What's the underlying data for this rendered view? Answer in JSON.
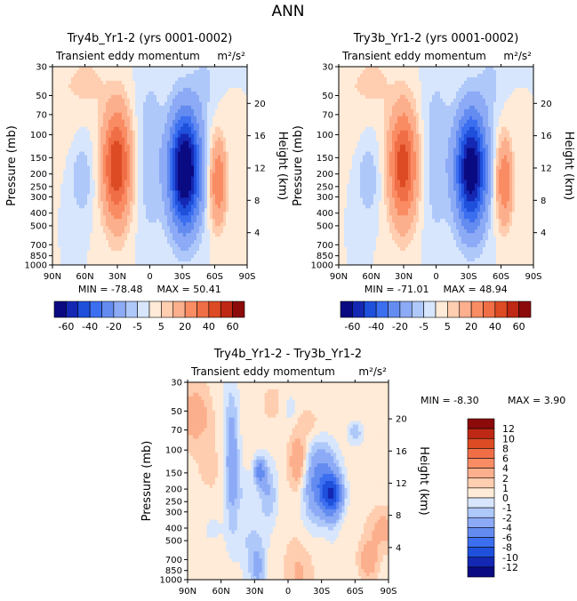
{
  "page_title": "ANN",
  "chart_data": [
    {
      "type": "contour",
      "title": "Try4b_Yr1-2 (yrs 0001-0002)",
      "subtitle": "Transient eddy momentum",
      "units": "m²/s²",
      "xlabel": "",
      "ylabel": "Pressure (mb)",
      "ylabel_right": "Height (km)",
      "x_ticks": [
        "90N",
        "60N",
        "30N",
        "0",
        "30S",
        "60S",
        "90S"
      ],
      "y_ticks": [
        "30",
        "50",
        "70",
        "100",
        "150",
        "200",
        "250",
        "300",
        "400",
        "500",
        "700",
        "850",
        "1000"
      ],
      "y_ticks_right": [
        "20",
        "16",
        "12",
        "8",
        "4"
      ],
      "min_label": "MIN = -78.48",
      "max_label": "MAX =  50.41",
      "features": [
        {
          "lat": 29,
          "p": 230,
          "value": 50
        },
        {
          "lat": -33,
          "p": 230,
          "value": -78
        },
        {
          "lat": -62,
          "p": 330,
          "value": 30
        },
        {
          "lat": 63,
          "p": 310,
          "value": -10
        }
      ]
    },
    {
      "type": "contour",
      "title": "Try3b_Yr1-2 (yrs 0001-0002)",
      "subtitle": "Transient eddy momentum",
      "units": "m²/s²",
      "xlabel": "",
      "ylabel": "Pressure (mb)",
      "ylabel_right": "Height (km)",
      "x_ticks": [
        "90N",
        "60N",
        "30N",
        "0",
        "30S",
        "60S",
        "90S"
      ],
      "y_ticks": [
        "30",
        "50",
        "70",
        "100",
        "150",
        "200",
        "250",
        "300",
        "400",
        "500",
        "700",
        "850",
        "1000"
      ],
      "y_ticks_right": [
        "20",
        "16",
        "12",
        "8",
        "4"
      ],
      "min_label": "MIN = -71.01",
      "max_label": "MAX =  48.94",
      "features": [
        {
          "lat": 29,
          "p": 230,
          "value": 49
        },
        {
          "lat": -33,
          "p": 230,
          "value": -71
        },
        {
          "lat": -62,
          "p": 330,
          "value": 28
        },
        {
          "lat": 63,
          "p": 310,
          "value": -10
        }
      ]
    },
    {
      "type": "contour",
      "title": "Try4b_Yr1-2 - Try3b_Yr1-2",
      "subtitle": "Transient eddy momentum",
      "units": "m²/s²",
      "xlabel": "",
      "ylabel": "Pressure (mb)",
      "ylabel_right": "Height (km)",
      "x_ticks": [
        "90N",
        "60N",
        "30N",
        "0",
        "30S",
        "60S",
        "90S"
      ],
      "y_ticks": [
        "30",
        "50",
        "70",
        "100",
        "150",
        "200",
        "250",
        "300",
        "400",
        "500",
        "700",
        "850",
        "1000"
      ],
      "y_ticks_right": [
        "20",
        "16",
        "12",
        "8",
        "4"
      ],
      "min_label": "MIN =  -8.30",
      "max_label": "MAX =    3.90",
      "features": [
        {
          "lat": -38,
          "p": 300,
          "value": -8
        },
        {
          "lat": 58,
          "p": 260,
          "value": -4
        },
        {
          "lat": 25,
          "p": 180,
          "value": -5
        },
        {
          "lat": 5,
          "p": 200,
          "value": 3
        },
        {
          "lat": -15,
          "p": 150,
          "value": 4
        }
      ]
    }
  ],
  "colorbars": [
    {
      "orientation": "horizontal",
      "labels": [
        "-60",
        "-40",
        "-20",
        "-5",
        "5",
        "20",
        "40",
        "60"
      ],
      "colors": [
        "#0a0a82",
        "#1428b4",
        "#1e50dc",
        "#3c6ef0",
        "#648cf0",
        "#8caaf5",
        "#afc8fa",
        "#d7e6fc",
        "#ffebd7",
        "#ffcdaf",
        "#fcaf8c",
        "#fa8c64",
        "#f06e46",
        "#dc4b23",
        "#be2814",
        "#8c0a0a"
      ]
    },
    {
      "orientation": "vertical",
      "labels": [
        "12",
        "10",
        "8",
        "6",
        "4",
        "2",
        "1",
        "0",
        "-1",
        "-2",
        "-4",
        "-6",
        "-8",
        "-10",
        "-12"
      ],
      "colors": [
        "#8c0a0a",
        "#be2814",
        "#dc4b23",
        "#f06e46",
        "#fa8c64",
        "#fcaf8c",
        "#ffcdaf",
        "#ffebd7",
        "#d7e6fc",
        "#afc8fa",
        "#8caaf5",
        "#648cf0",
        "#3c6ef0",
        "#1e50dc",
        "#1428b4",
        "#0a0a82"
      ]
    }
  ]
}
